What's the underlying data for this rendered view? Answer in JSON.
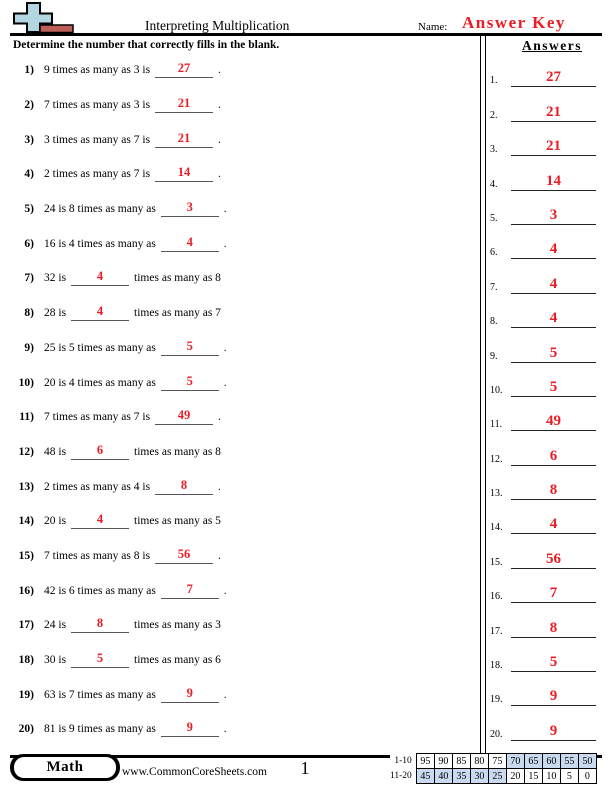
{
  "header": {
    "title": "Interpreting Multiplication",
    "name_label": "Name:",
    "name_value": "Answer Key",
    "answers_heading": "Answers"
  },
  "instruction": "Determine the number that correctly fills in the blank.",
  "questions": [
    {
      "num": "1)",
      "pre": "9 times as many as 3 is",
      "answer": "27",
      "post": "."
    },
    {
      "num": "2)",
      "pre": "7 times as many as 3 is",
      "answer": "21",
      "post": "."
    },
    {
      "num": "3)",
      "pre": "3 times as many as 7 is",
      "answer": "21",
      "post": "."
    },
    {
      "num": "4)",
      "pre": "2 times as many as 7 is",
      "answer": "14",
      "post": "."
    },
    {
      "num": "5)",
      "pre": "24 is 8 times as many as",
      "answer": "3",
      "post": "."
    },
    {
      "num": "6)",
      "pre": "16 is 4 times as many as",
      "answer": "4",
      "post": "."
    },
    {
      "num": "7)",
      "pre": "32 is",
      "answer": "4",
      "post": "times as many as 8"
    },
    {
      "num": "8)",
      "pre": "28 is",
      "answer": "4",
      "post": "times as many as 7"
    },
    {
      "num": "9)",
      "pre": "25 is 5 times as many as",
      "answer": "5",
      "post": "."
    },
    {
      "num": "10)",
      "pre": "20 is 4 times as many as",
      "answer": "5",
      "post": "."
    },
    {
      "num": "11)",
      "pre": "7 times as many as 7 is",
      "answer": "49",
      "post": "."
    },
    {
      "num": "12)",
      "pre": "48 is",
      "answer": "6",
      "post": "times as many as 8"
    },
    {
      "num": "13)",
      "pre": "2 times as many as 4 is",
      "answer": "8",
      "post": "."
    },
    {
      "num": "14)",
      "pre": "20 is",
      "answer": "4",
      "post": "times as many as 5"
    },
    {
      "num": "15)",
      "pre": "7 times as many as 8 is",
      "answer": "56",
      "post": "."
    },
    {
      "num": "16)",
      "pre": "42 is 6 times as many as",
      "answer": "7",
      "post": "."
    },
    {
      "num": "17)",
      "pre": "24 is",
      "answer": "8",
      "post": "times as many as 3"
    },
    {
      "num": "18)",
      "pre": "30 is",
      "answer": "5",
      "post": "times as many as 6"
    },
    {
      "num": "19)",
      "pre": "63 is 7 times as many as",
      "answer": "9",
      "post": "."
    },
    {
      "num": "20)",
      "pre": "81 is 9 times as many as",
      "answer": "9",
      "post": "."
    }
  ],
  "answers_column": [
    {
      "num": "1.",
      "value": "27"
    },
    {
      "num": "2.",
      "value": "21"
    },
    {
      "num": "3.",
      "value": "21"
    },
    {
      "num": "4.",
      "value": "14"
    },
    {
      "num": "5.",
      "value": "3"
    },
    {
      "num": "6.",
      "value": "4"
    },
    {
      "num": "7.",
      "value": "4"
    },
    {
      "num": "8.",
      "value": "4"
    },
    {
      "num": "9.",
      "value": "5"
    },
    {
      "num": "10.",
      "value": "5"
    },
    {
      "num": "11.",
      "value": "49"
    },
    {
      "num": "12.",
      "value": "6"
    },
    {
      "num": "13.",
      "value": "8"
    },
    {
      "num": "14.",
      "value": "4"
    },
    {
      "num": "15.",
      "value": "56"
    },
    {
      "num": "16.",
      "value": "7"
    },
    {
      "num": "17.",
      "value": "8"
    },
    {
      "num": "18.",
      "value": "5"
    },
    {
      "num": "19.",
      "value": "9"
    },
    {
      "num": "20.",
      "value": "9"
    }
  ],
  "footer": {
    "subject": "Math",
    "website": "www.CommonCoreSheets.com",
    "page_number": "1",
    "score_table": {
      "rows": [
        {
          "label": "1-10",
          "cells": [
            {
              "v": "95",
              "hl": false
            },
            {
              "v": "90",
              "hl": false
            },
            {
              "v": "85",
              "hl": false
            },
            {
              "v": "80",
              "hl": false
            },
            {
              "v": "75",
              "hl": false
            },
            {
              "v": "70",
              "hl": true
            },
            {
              "v": "65",
              "hl": true
            },
            {
              "v": "60",
              "hl": true
            },
            {
              "v": "55",
              "hl": true
            },
            {
              "v": "50",
              "hl": true
            }
          ]
        },
        {
          "label": "11-20",
          "cells": [
            {
              "v": "45",
              "hl": true
            },
            {
              "v": "40",
              "hl": true
            },
            {
              "v": "35",
              "hl": true
            },
            {
              "v": "30",
              "hl": true
            },
            {
              "v": "25",
              "hl": true
            },
            {
              "v": "20",
              "hl": false
            },
            {
              "v": "15",
              "hl": false
            },
            {
              "v": "10",
              "hl": false
            },
            {
              "v": "5",
              "hl": false
            },
            {
              "v": "0",
              "hl": false
            }
          ]
        }
      ]
    }
  },
  "colors": {
    "answer_red": "#ed1c24",
    "table_highlight": "#c9d9f0",
    "logo_blue": "#b3d6e3",
    "logo_brick": "#bd5e58"
  }
}
